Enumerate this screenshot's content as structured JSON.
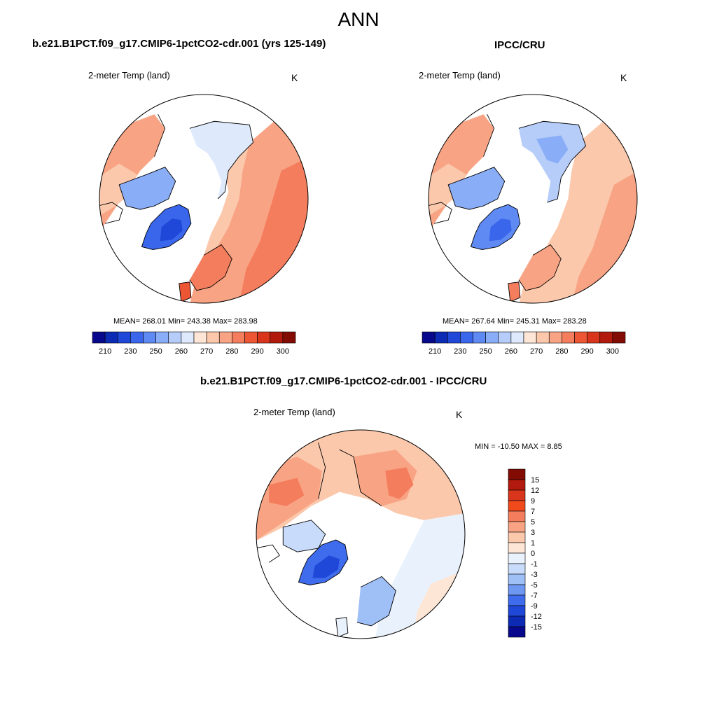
{
  "figure_title": "ANN",
  "panels": [
    {
      "title": "b.e21.B1PCT.f09_g17.CMIP6-1pctCO2-cdr.001 (yrs 125-149)",
      "variable": "2-meter Temp (land)",
      "units": "K",
      "stats": "MEAN= 268.01  Min= 243.38  Max= 283.98",
      "mean": 268.01,
      "min": 243.38,
      "max": 283.98
    },
    {
      "title": "IPCC/CRU",
      "variable": "2-meter Temp (land)",
      "units": "K",
      "stats": "MEAN= 267.64  Min= 245.31  Max= 283.28",
      "mean": 267.64,
      "min": 245.31,
      "max": 283.28
    },
    {
      "title": "b.e21.B1PCT.f09_g17.CMIP6-1pctCO2-cdr.001 - IPCC/CRU",
      "variable": "2-meter Temp (land)",
      "units": "K",
      "stats": "MIN = -10.50 MAX =   8.85",
      "min": -10.5,
      "max": 8.85
    }
  ],
  "abs_colorbar": {
    "tick_labels": [
      "210",
      "230",
      "250",
      "260",
      "270",
      "280",
      "290",
      "300"
    ],
    "colors": [
      "#08088c",
      "#0c2ab4",
      "#1f48d8",
      "#3a66ec",
      "#5f8af3",
      "#8aadf7",
      "#b6cdfa",
      "#deeafc",
      "#fde6d6",
      "#fbc8ac",
      "#f8a484",
      "#f47d5e",
      "#ec5634",
      "#d8351c",
      "#b11a0c",
      "#820c04"
    ]
  },
  "diff_colorbar": {
    "tick_labels": [
      "15",
      "12",
      "9",
      "7",
      "5",
      "3",
      "1",
      "0",
      "-1",
      "-3",
      "-5",
      "-7",
      "-9",
      "-12",
      "-15"
    ],
    "colors_top_to_bottom": [
      "#820c04",
      "#b11a0c",
      "#d8351c",
      "#f04a1c",
      "#f47d5e",
      "#f8a484",
      "#fbc8ac",
      "#fde6d6",
      "#e9f1fc",
      "#c8dbfa",
      "#9fbff7",
      "#6e97f2",
      "#3f6cec",
      "#1f48d8",
      "#0c2ab4",
      "#08088c"
    ]
  },
  "chart_data": [
    {
      "type": "heatmap",
      "title": "b.e21.B1PCT.f09_g17.CMIP6-1pctCO2-cdr.001 (yrs 125-149)",
      "subtitle": "2-meter Temp (land)",
      "units": "K",
      "projection": "north polar stereographic",
      "stats": {
        "mean": 268.01,
        "min": 243.38,
        "max": 283.98
      },
      "colorbar_levels": [
        210,
        230,
        250,
        260,
        270,
        280,
        290,
        300
      ]
    },
    {
      "type": "heatmap",
      "title": "IPCC/CRU",
      "subtitle": "2-meter Temp (land)",
      "units": "K",
      "projection": "north polar stereographic",
      "stats": {
        "mean": 267.64,
        "min": 245.31,
        "max": 283.28
      },
      "colorbar_levels": [
        210,
        230,
        250,
        260,
        270,
        280,
        290,
        300
      ]
    },
    {
      "type": "heatmap",
      "title": "b.e21.B1PCT.f09_g17.CMIP6-1pctCO2-cdr.001 - IPCC/CRU",
      "subtitle": "2-meter Temp (land)",
      "units": "K",
      "projection": "north polar stereographic",
      "stats": {
        "min": -10.5,
        "max": 8.85
      },
      "colorbar_levels": [
        -15,
        -12,
        -9,
        -7,
        -5,
        -3,
        -1,
        0,
        1,
        3,
        5,
        7,
        9,
        12,
        15
      ]
    }
  ]
}
